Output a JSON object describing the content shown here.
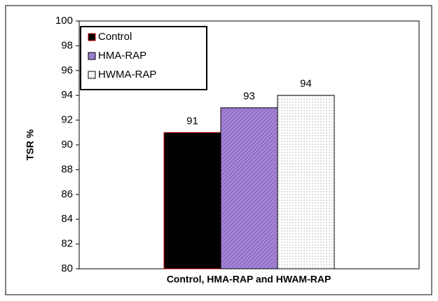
{
  "chart_data": {
    "type": "bar",
    "y_label": "TSR %",
    "x_label": "Control, HMA-RAP and HWAM-RAP",
    "categories": [
      null
    ],
    "series": [
      {
        "name": "Control",
        "color": "#000000",
        "values": [
          91
        ]
      },
      {
        "name": "HMA-RAP",
        "color": "#a585d6",
        "values": [
          93
        ]
      },
      {
        "name": "HWMA-RAP",
        "color": "#ffffff",
        "values": [
          94
        ]
      }
    ],
    "ylim": [
      80,
      100
    ],
    "yticks": [
      80,
      82,
      84,
      86,
      88,
      90,
      92,
      94,
      96,
      98,
      100
    ],
    "legend": "upper left"
  }
}
